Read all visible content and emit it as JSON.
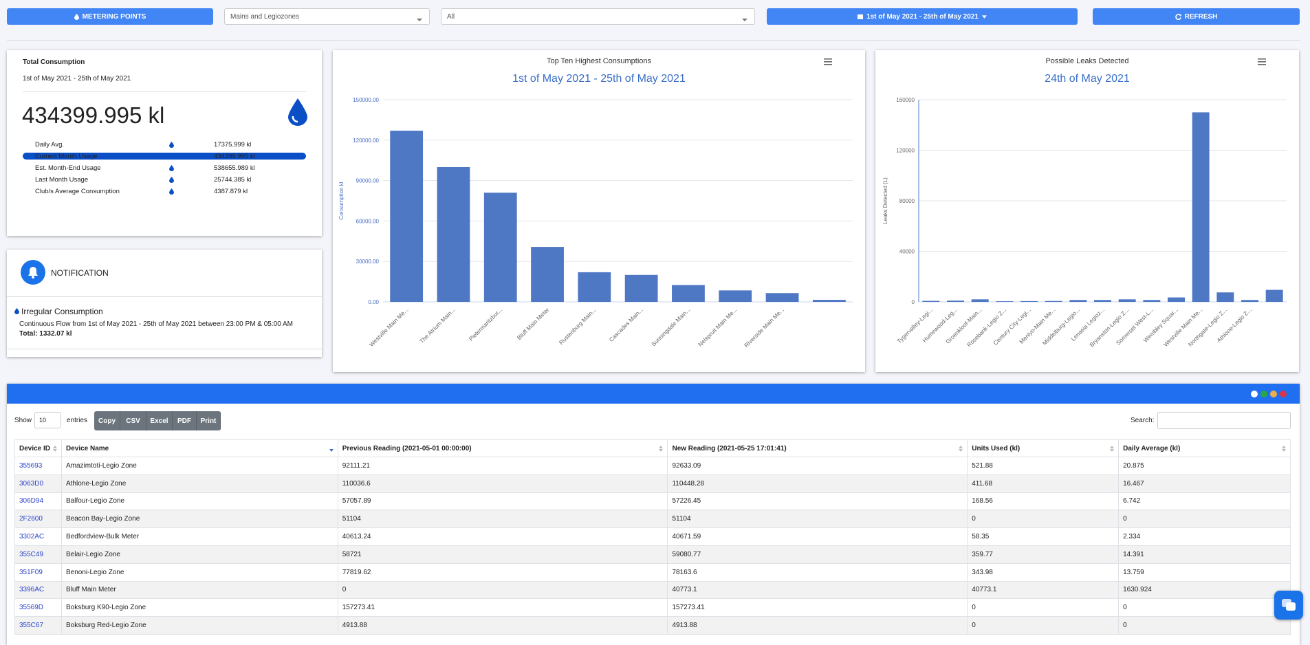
{
  "toolbar": {
    "metering_button": "METERING POINTS",
    "zone_select": "Mains and Legiozones",
    "filter_select": "All",
    "date_button": "1st of May 2021 - 25th of May 2021",
    "refresh_button": "REFRESH"
  },
  "summary": {
    "title": "Total Consumption",
    "period": "1st of May 2021 - 25th of May 2021",
    "total": "434399.995 kl",
    "stats": [
      {
        "label": "Daily Avg.",
        "value": "17375.999 kl"
      },
      {
        "label": "Current Month Usage",
        "value": "434399.995 kl"
      },
      {
        "label": "Est. Month-End Usage",
        "value": "538655.989 kl"
      },
      {
        "label": "Last Month Usage",
        "value": "25744.385 kl"
      },
      {
        "label": "Club/s Average Consumption",
        "value": "4387.879 kl"
      }
    ]
  },
  "notification": {
    "title": "NOTIFICATION",
    "heading": "Irregular Consumption",
    "message": "Continuous Flow from 1st of May 2021 - 25th of May 2021 between 23:00 PM & 05:00 AM",
    "total": "Total: 1332.07 kl"
  },
  "chart_data": [
    {
      "type": "bar",
      "title": "Top Ten Highest Consumptions",
      "subtitle": "1st of May 2021 - 25th of May 2021",
      "y_label": "Consumption kl",
      "categories": [
        "Westville Main Me...",
        "The Atrium Main...",
        "Pietermaritzbur...",
        "Bluff Main Meter",
        "Rustenburg Main...",
        "Cascades Main...",
        "Sunningdale Main...",
        "Nelspruit Main Me...",
        "Riverside Main Me...",
        null
      ],
      "values": [
        127000,
        100000,
        81000,
        40773,
        22000,
        20000,
        12500,
        8500,
        6500,
        1500
      ],
      "color": "#4f78c4",
      "ylim": [
        0,
        150000
      ],
      "yticks": [
        {
          "value": 0,
          "label": "0.00"
        },
        {
          "value": 30000,
          "label": "30000.00"
        },
        {
          "value": 60000,
          "label": "60000.00"
        },
        {
          "value": 90000,
          "label": "90000.00"
        },
        {
          "value": 120000,
          "label": "120000.00"
        },
        {
          "value": 150000,
          "label": "150000.00"
        }
      ],
      "grid": true
    },
    {
      "type": "bar",
      "title": "Possible Leaks Detected",
      "subtitle": "24th of May 2021",
      "y_label": "Leaks Detected (L)",
      "categories": [
        "Tygervalley-Legi...",
        "Humewood-Leg...",
        "Groenkloof-Main...",
        "Rosebank-Legio Z...",
        "Century City-Legi...",
        "Menlyn-Main Me...",
        "Middelburg-Legio...",
        "Lenasia Legioz...",
        "Bryanston-Legio Z...",
        "Somerset West-L...",
        "Wembley Squar...",
        "Westville Main Me...",
        "Northgate-Legio Z...",
        "Athlone-Legio Z...",
        null
      ],
      "values": [
        800,
        1000,
        2000,
        500,
        600,
        700,
        1500,
        1500,
        2000,
        1500,
        3500,
        150000,
        7500,
        1500,
        9500
      ],
      "color": "#4f78c4",
      "ylim": [
        0,
        160000
      ],
      "yticks": [
        0,
        40000,
        80000,
        120000,
        160000
      ],
      "grid": true
    }
  ],
  "table": {
    "show_label": "Show",
    "page_size": "10",
    "entries_label": "entries",
    "buttons": [
      "Copy",
      "CSV",
      "Excel",
      "PDF",
      "Print"
    ],
    "search_label": "Search:",
    "columns": [
      "Device ID",
      "Device Name",
      "Previous Reading (2021-05-01 00:00:00)",
      "New Reading (2021-05-25 17:01:41)",
      "Units Used (kl)",
      "Daily Average (kl)"
    ],
    "rows": [
      [
        "355693",
        "Amazimtoti-Legio Zone",
        "92111.21",
        "92633.09",
        "521.88",
        "20.875"
      ],
      [
        "3063D0",
        "Athlone-Legio Zone",
        "110036.6",
        "110448.28",
        "411.68",
        "16.467"
      ],
      [
        "306D94",
        "Balfour-Legio Zone",
        "57057.89",
        "57226.45",
        "168.56",
        "6.742"
      ],
      [
        "2F2600",
        "Beacon Bay-Legio Zone",
        "51104",
        "51104",
        "0",
        "0"
      ],
      [
        "3302AC",
        "Bedfordview-Bulk Meter",
        "40613.24",
        "40671.59",
        "58.35",
        "2.334"
      ],
      [
        "355C49",
        "Belair-Legio Zone",
        "58721",
        "59080.77",
        "359.77",
        "14.391"
      ],
      [
        "351F09",
        "Benoni-Legio Zone",
        "77819.62",
        "78163.6",
        "343.98",
        "13.759"
      ],
      [
        "3396AC",
        "Bluff Main Meter",
        "0",
        "40773.1",
        "40773.1",
        "1630.924"
      ],
      [
        "35569D",
        "Boksburg K90-Legio Zone",
        "157273.41",
        "157273.41",
        "0",
        "0"
      ],
      [
        "355C67",
        "Boksburg Red-Legio Zone",
        "4913.88",
        "4913.88",
        "0",
        "0"
      ]
    ]
  }
}
